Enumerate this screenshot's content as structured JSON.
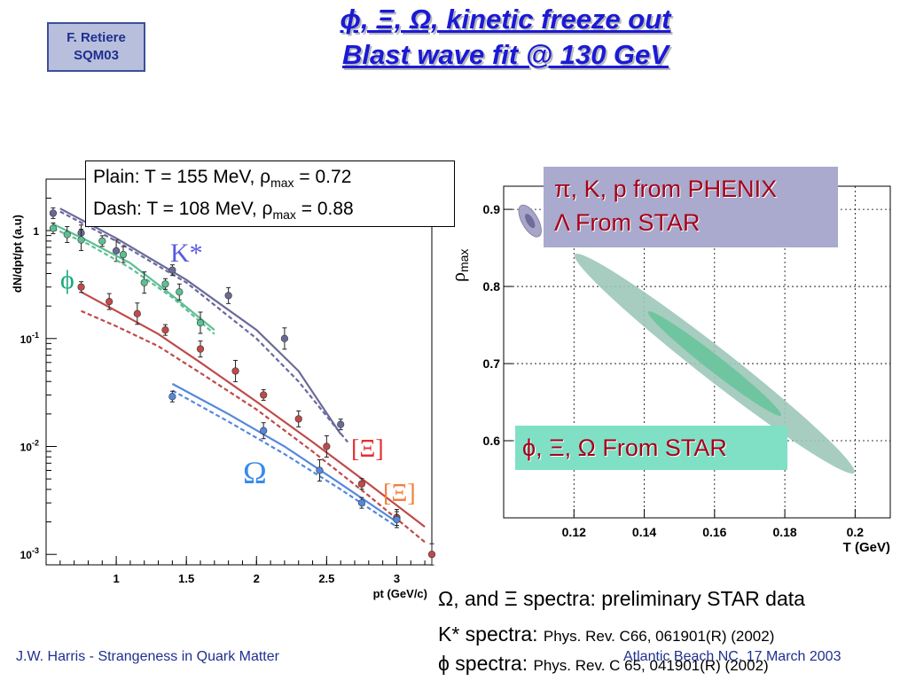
{
  "badge": {
    "line1": "F. Retiere",
    "line2": "SQM03"
  },
  "title": {
    "line1": "ϕ, Ξ, Ω, kinetic freeze out",
    "line2": "Blast wave fit @ 130 GeV"
  },
  "legend": {
    "plain_prefix": "Plain: T = 155 MeV, ρ",
    "plain_sub": "max",
    "plain_suffix": " = 0.72",
    "dash_prefix": "Dash: T = 108 MeV, ρ",
    "dash_sub": "max",
    "dash_suffix": " = 0.88"
  },
  "labels": {
    "kstar": "K*",
    "phi": "ϕ",
    "xi": "[Ξ]",
    "omega": "Ω",
    "antixi": "[Ξ]"
  },
  "right_boxes": {
    "line1": "π, K, p from PHENIX",
    "line2": "Λ From STAR",
    "line3": "ϕ, Ξ, Ω From STAR"
  },
  "footnotes": {
    "line1_sym": "Ω,",
    "line1_text": " and Ξ spectra: preliminary STAR data",
    "line2_text": "K* spectra: ",
    "line2_ref": "Phys. Rev. C66, 061901(R) (2002)",
    "line3_text": "ϕ spectra: ",
    "line3_ref": "Phys. Rev. C 65, 041901(R) (2002)"
  },
  "footer": {
    "left": "J.W. Harris - Strangeness in Quark Matter",
    "right": "Atlantic Beach NC, 17 March 2003"
  },
  "colors": {
    "kstar": "#6a6a9a",
    "phi": "#5dbf94",
    "xi": "#c04a4a",
    "omega": "#5588dd",
    "ellipse_outer": "#9cc8b8",
    "ellipse_inner": "#6cc49e"
  },
  "chart_data": [
    {
      "type": "scatter",
      "xlabel": "pt (GeV/c)",
      "ylabel": "dN/dpt/pt (a.u)",
      "xlim": [
        0.5,
        3.25
      ],
      "ylim": [
        0.0008,
        3
      ],
      "yscale": "log",
      "xticks": [
        "1",
        "1.5",
        "2",
        "2.5",
        "3"
      ],
      "yticks": [
        "1",
        "10^-1",
        "10^-2",
        "10^-3"
      ],
      "series": [
        {
          "name": "K*",
          "color": "#6a6a9a",
          "x": [
            0.55,
            0.75,
            1.0,
            1.4,
            1.8,
            2.2,
            2.6
          ],
          "y": [
            1.45,
            0.95,
            0.65,
            0.43,
            0.25,
            0.1,
            0.016
          ],
          "fit_plain": [
            [
              0.6,
              1.6
            ],
            [
              1.0,
              0.85
            ],
            [
              1.5,
              0.35
            ],
            [
              2.0,
              0.12
            ],
            [
              2.3,
              0.05
            ],
            [
              2.6,
              0.013
            ]
          ],
          "fit_dash": [
            [
              0.6,
              1.5
            ],
            [
              1.0,
              0.8
            ],
            [
              1.5,
              0.33
            ],
            [
              2.0,
              0.1
            ],
            [
              2.3,
              0.04
            ],
            [
              2.65,
              0.011
            ]
          ]
        },
        {
          "name": "ϕ",
          "color": "#5dbf94",
          "x": [
            0.55,
            0.65,
            0.75,
            0.9,
            1.05,
            1.2,
            1.35,
            1.45,
            1.6
          ],
          "y": [
            1.05,
            0.92,
            0.82,
            0.8,
            0.6,
            0.33,
            0.32,
            0.27,
            0.14
          ],
          "fit_plain": [
            [
              0.55,
              1.15
            ],
            [
              0.8,
              0.8
            ],
            [
              1.1,
              0.5
            ],
            [
              1.4,
              0.25
            ],
            [
              1.7,
              0.12
            ]
          ],
          "fit_dash": [
            [
              0.55,
              1.05
            ],
            [
              0.8,
              0.75
            ],
            [
              1.1,
              0.45
            ],
            [
              1.4,
              0.24
            ],
            [
              1.7,
              0.11
            ]
          ]
        },
        {
          "name": "Ξ",
          "color": "#c04a4a",
          "x": [
            0.75,
            0.95,
            1.15,
            1.35,
            1.6,
            1.85,
            2.05,
            2.3,
            2.5,
            2.75,
            3.0,
            3.25
          ],
          "y": [
            0.3,
            0.22,
            0.17,
            0.12,
            0.08,
            0.05,
            0.03,
            0.018,
            0.01,
            0.0045,
            0.0022,
            0.001
          ],
          "fit_plain": [
            [
              0.75,
              0.27
            ],
            [
              1.0,
              0.18
            ],
            [
              1.3,
              0.11
            ],
            [
              1.6,
              0.06
            ],
            [
              2.0,
              0.026
            ],
            [
              2.4,
              0.011
            ],
            [
              2.8,
              0.0045
            ],
            [
              3.2,
              0.0018
            ]
          ],
          "fit_dash": [
            [
              0.75,
              0.18
            ],
            [
              1.0,
              0.13
            ],
            [
              1.3,
              0.085
            ],
            [
              1.6,
              0.048
            ],
            [
              2.0,
              0.022
            ],
            [
              2.4,
              0.009
            ],
            [
              2.8,
              0.0035
            ],
            [
              3.2,
              0.0013
            ]
          ]
        },
        {
          "name": "Ω",
          "color": "#5588dd",
          "x": [
            1.4,
            2.05,
            2.45,
            2.75,
            3.0
          ],
          "y": [
            0.029,
            0.014,
            0.006,
            0.003,
            0.0021
          ],
          "fit_plain": [
            [
              1.4,
              0.038
            ],
            [
              1.8,
              0.02
            ],
            [
              2.2,
              0.01
            ],
            [
              2.6,
              0.0045
            ],
            [
              3.0,
              0.002
            ]
          ],
          "fit_dash": [
            [
              1.4,
              0.033
            ],
            [
              1.8,
              0.017
            ],
            [
              2.2,
              0.0085
            ],
            [
              2.6,
              0.004
            ],
            [
              3.0,
              0.0018
            ]
          ]
        }
      ]
    },
    {
      "type": "scatter",
      "xlabel": "T (GeV)",
      "ylabel": "ρmax",
      "xlim": [
        0.1,
        0.21
      ],
      "ylim": [
        0.5,
        0.93
      ],
      "xticks": [
        "0.12",
        "0.14",
        "0.16",
        "0.18",
        "0.2"
      ],
      "yticks": [
        "0.6",
        "0.7",
        "0.8",
        "0.9"
      ],
      "contours": [
        {
          "name": "π, K, p from PHENIX, Λ From STAR",
          "center_T": 0.1075,
          "center_rho": 0.885
        },
        {
          "name": "ϕ, Ξ, Ω From STAR",
          "center_T": 0.16,
          "center_rho": 0.7
        }
      ]
    }
  ]
}
